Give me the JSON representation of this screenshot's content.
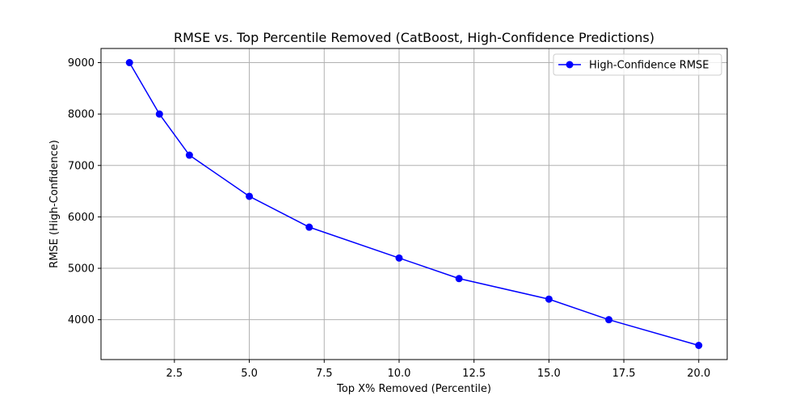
{
  "chart_data": {
    "type": "line",
    "title": "RMSE vs. Top Percentile Removed (CatBoost, High-Confidence Predictions)",
    "xlabel": "Top X% Removed (Percentile)",
    "ylabel": "RMSE (High-Confidence)",
    "xlim": [
      0.05,
      20.95
    ],
    "ylim": [
      3225,
      9275
    ],
    "x_ticks": [
      2.5,
      5.0,
      7.5,
      10.0,
      12.5,
      15.0,
      17.5,
      20.0
    ],
    "x_tick_labels": [
      "2.5",
      "5.0",
      "7.5",
      "10.0",
      "12.5",
      "15.0",
      "17.5",
      "20.0"
    ],
    "y_ticks": [
      4000,
      5000,
      6000,
      7000,
      8000,
      9000
    ],
    "y_tick_labels": [
      "4000",
      "5000",
      "6000",
      "7000",
      "8000",
      "9000"
    ],
    "grid": true,
    "legend_position": "top-right",
    "series": [
      {
        "name": "High-Confidence RMSE",
        "color": "#0000ff",
        "marker": "circle",
        "x": [
          1,
          2,
          3,
          5,
          7,
          10,
          12,
          15,
          17,
          20
        ],
        "y": [
          9000,
          8000,
          7200,
          6400,
          5800,
          5200,
          4800,
          4400,
          4000,
          3500
        ]
      }
    ]
  }
}
